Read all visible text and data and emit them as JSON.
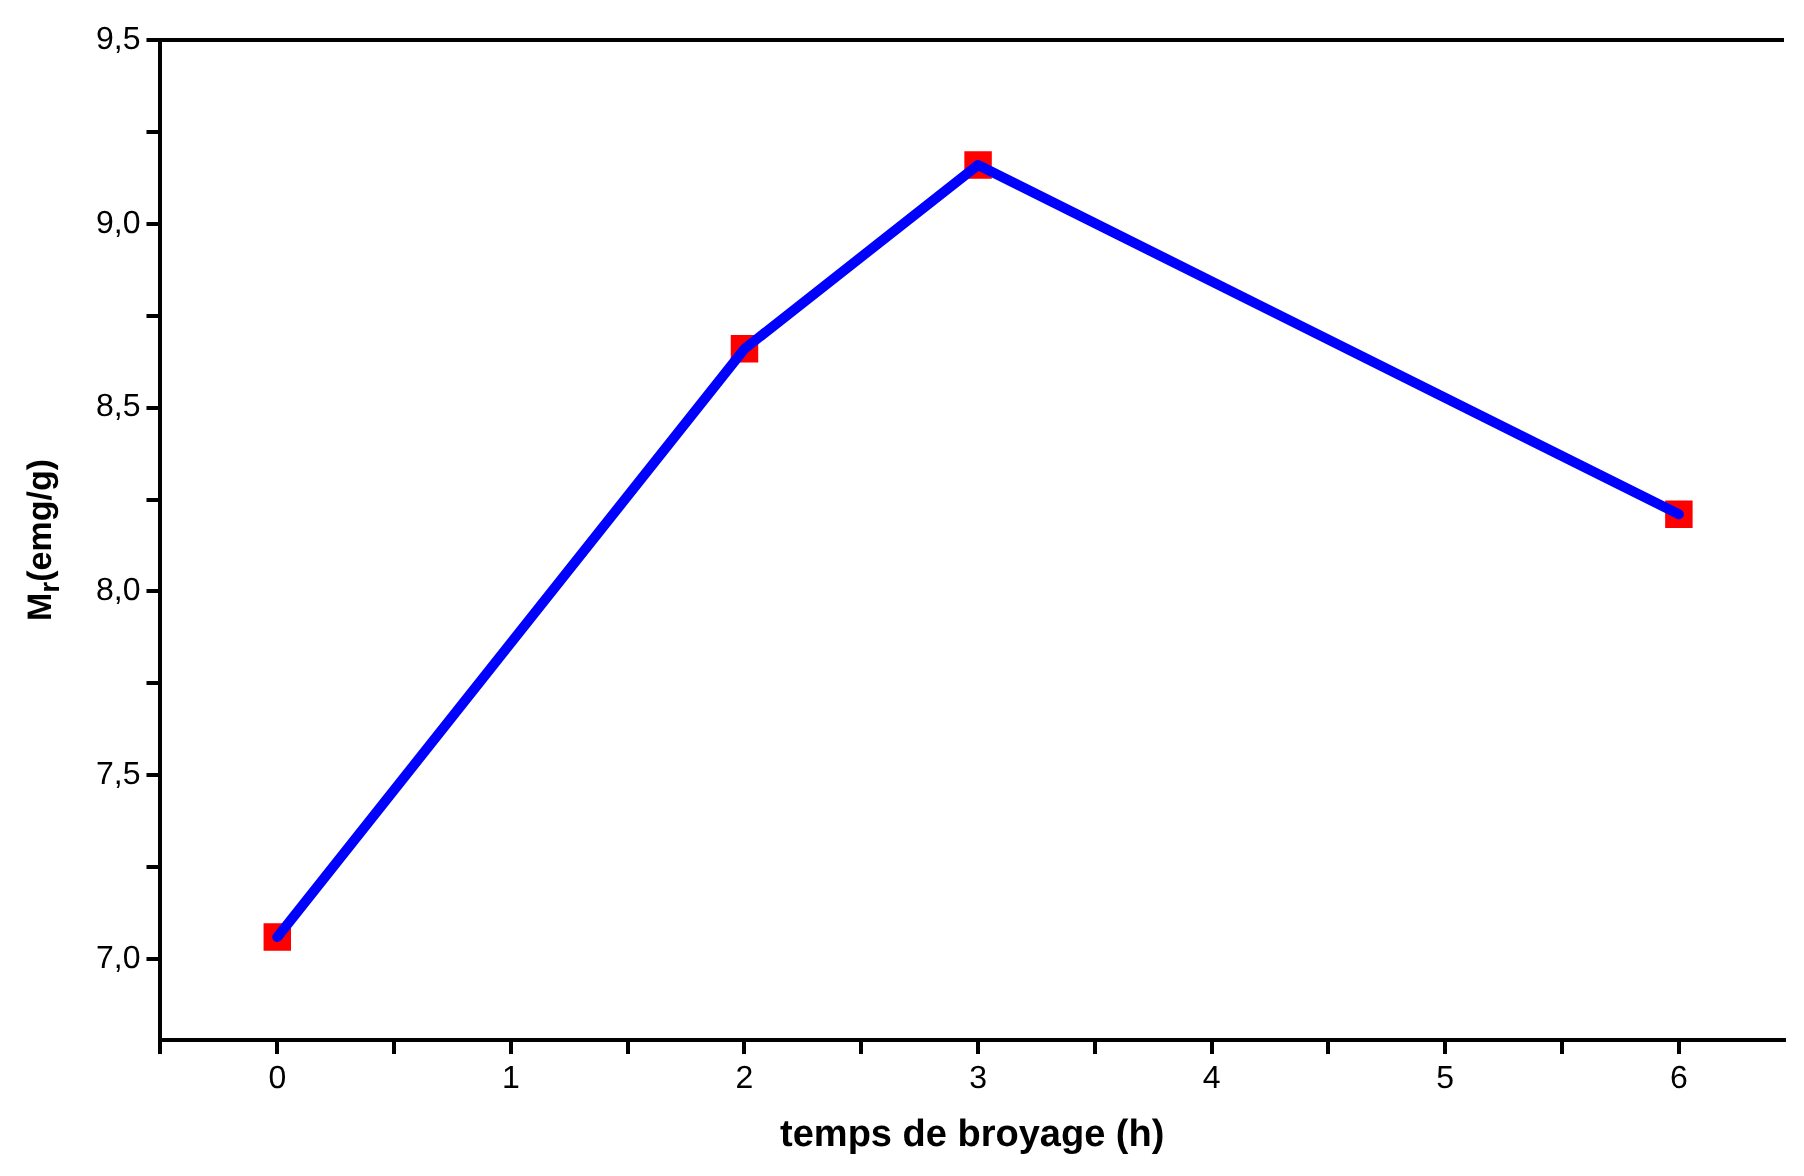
{
  "chart_data": {
    "type": "line",
    "xlabel": "temps de broyage (h)",
    "ylabel": "M$_{r}$(emg/g)",
    "x": [
      0,
      2,
      3,
      6
    ],
    "series": [
      {
        "type": "line",
        "color": "#0000ff",
        "values": [
          7.06,
          8.66,
          9.16,
          8.21
        ],
        "marker": "none"
      },
      {
        "type": "scatter",
        "color": "#ff0000",
        "values": [
          7.06,
          8.66,
          9.16,
          8.21
        ],
        "marker": "square"
      }
    ],
    "xlim": [
      -0.5,
      6.45
    ],
    "xticks": [
      {
        "value": -0.5,
        "label": null
      },
      0,
      {
        "value": 0.5,
        "label": null
      },
      1,
      {
        "value": 1.5,
        "label": null
      },
      2,
      {
        "value": 2.5,
        "label": null
      },
      3,
      {
        "value": 3.5,
        "label": null
      },
      4,
      {
        "value": 4.5,
        "label": null
      },
      5,
      {
        "value": 5.5,
        "label": null
      },
      6
    ],
    "ylim": [
      6.78,
      9.5
    ],
    "yticks": [
      {
        "value": 7,
        "label": "7,0"
      },
      {
        "value": 7.25,
        "label": null
      },
      {
        "value": 7.5,
        "label": "7,5"
      },
      {
        "value": 7.75,
        "label": null
      },
      {
        "value": 8,
        "label": "8,0"
      },
      {
        "value": 8.25,
        "label": null
      },
      {
        "value": 8.5,
        "label": "8,5"
      },
      {
        "value": 8.75,
        "label": null
      },
      {
        "value": 9,
        "label": "9,0"
      },
      {
        "value": 9.25,
        "label": null
      },
      {
        "value": 9.5,
        "label": "9,5"
      }
    ],
    "grid": false,
    "legend": false
  }
}
